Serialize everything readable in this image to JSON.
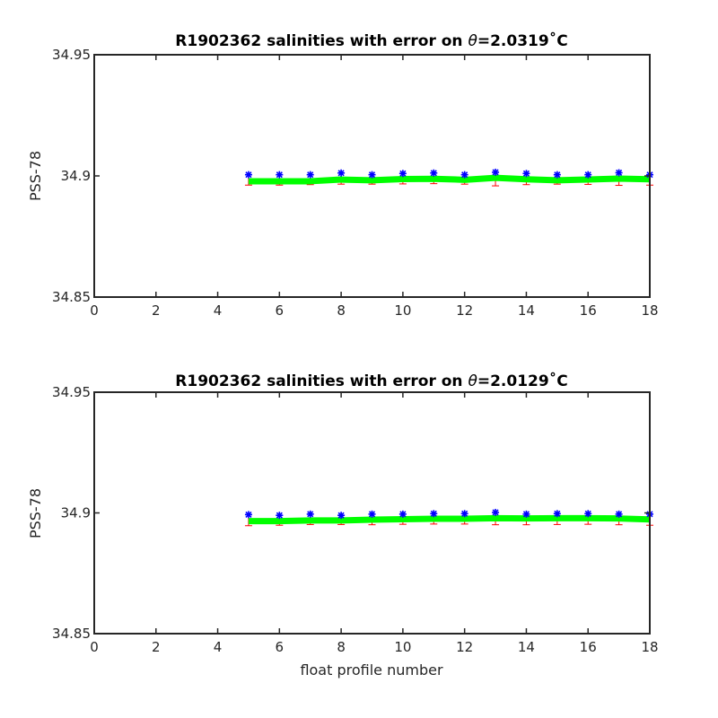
{
  "chart_data": [
    {
      "type": "line",
      "title": "R1902362 salinities with error on θ=2.0319˚C",
      "title_parts": {
        "prefix": "R1902362 salinities with error on ",
        "symbol": "θ",
        "value": "=2.0319",
        "unit": "˚C"
      },
      "xlabel": "",
      "ylabel": "PSS-78",
      "xlim": [
        0,
        18
      ],
      "ylim": [
        34.85,
        34.95
      ],
      "x_ticks": [
        "0",
        "2",
        "4",
        "6",
        "8",
        "10",
        "12",
        "14",
        "16",
        "18"
      ],
      "y_ticks": [
        "34.85",
        "34.9",
        "34.95"
      ],
      "grid": false,
      "x": [
        5,
        6,
        7,
        8,
        9,
        10,
        11,
        12,
        13,
        14,
        15,
        16,
        17,
        18
      ],
      "series": [
        {
          "role": "mapped",
          "color": "#00ff00",
          "values": [
            34.8978,
            34.8978,
            34.8978,
            34.8985,
            34.8982,
            34.8987,
            34.8988,
            34.8984,
            34.8992,
            34.8986,
            34.8982,
            34.8985,
            34.8989,
            34.8986
          ]
        },
        {
          "role": "measured",
          "color": "#0000ff",
          "marker": "*",
          "values": [
            34.9005,
            34.9005,
            34.9005,
            34.9012,
            34.9005,
            34.901,
            34.9012,
            34.9005,
            34.9015,
            34.901,
            34.9005,
            34.9005,
            34.9013,
            34.9005
          ]
        },
        {
          "role": "error",
          "color": "#ff0000",
          "lower": [
            34.8962,
            34.8962,
            34.8964,
            34.8966,
            34.8966,
            34.8967,
            34.8968,
            34.8966,
            34.8959,
            34.8964,
            34.8966,
            34.8965,
            34.8961,
            34.8962
          ]
        }
      ]
    },
    {
      "type": "line",
      "title": "R1902362 salinities with error on θ=2.0129˚C",
      "title_parts": {
        "prefix": "R1902362 salinities with error on ",
        "symbol": "θ",
        "value": "=2.0129",
        "unit": "˚C"
      },
      "xlabel": "float profile number",
      "ylabel": "PSS-78",
      "xlim": [
        0,
        18
      ],
      "ylim": [
        34.85,
        34.95
      ],
      "x_ticks": [
        "0",
        "2",
        "4",
        "6",
        "8",
        "10",
        "12",
        "14",
        "16",
        "18"
      ],
      "y_ticks": [
        "34.85",
        "34.9",
        "34.95"
      ],
      "grid": false,
      "x": [
        5,
        6,
        7,
        8,
        9,
        10,
        11,
        12,
        13,
        14,
        15,
        16,
        17,
        18
      ],
      "series": [
        {
          "role": "mapped",
          "color": "#00ff00",
          "values": [
            34.8966,
            34.8966,
            34.8969,
            34.8969,
            34.8972,
            34.8974,
            34.8976,
            34.8976,
            34.8978,
            34.8977,
            34.8978,
            34.8978,
            34.8977,
            34.8973
          ]
        },
        {
          "role": "measured",
          "color": "#0000ff",
          "marker": "*",
          "values": [
            34.8993,
            34.899,
            34.8995,
            34.899,
            34.8995,
            34.8995,
            34.8997,
            34.8997,
            34.9002,
            34.8995,
            34.8997,
            34.8997,
            34.8995,
            34.8995
          ]
        },
        {
          "role": "error",
          "color": "#ff0000",
          "lower": [
            34.8947,
            34.8949,
            34.8952,
            34.8952,
            34.8951,
            34.8953,
            34.8954,
            34.8954,
            34.8951,
            34.8951,
            34.8952,
            34.8953,
            34.8951,
            34.8949
          ]
        }
      ]
    }
  ]
}
